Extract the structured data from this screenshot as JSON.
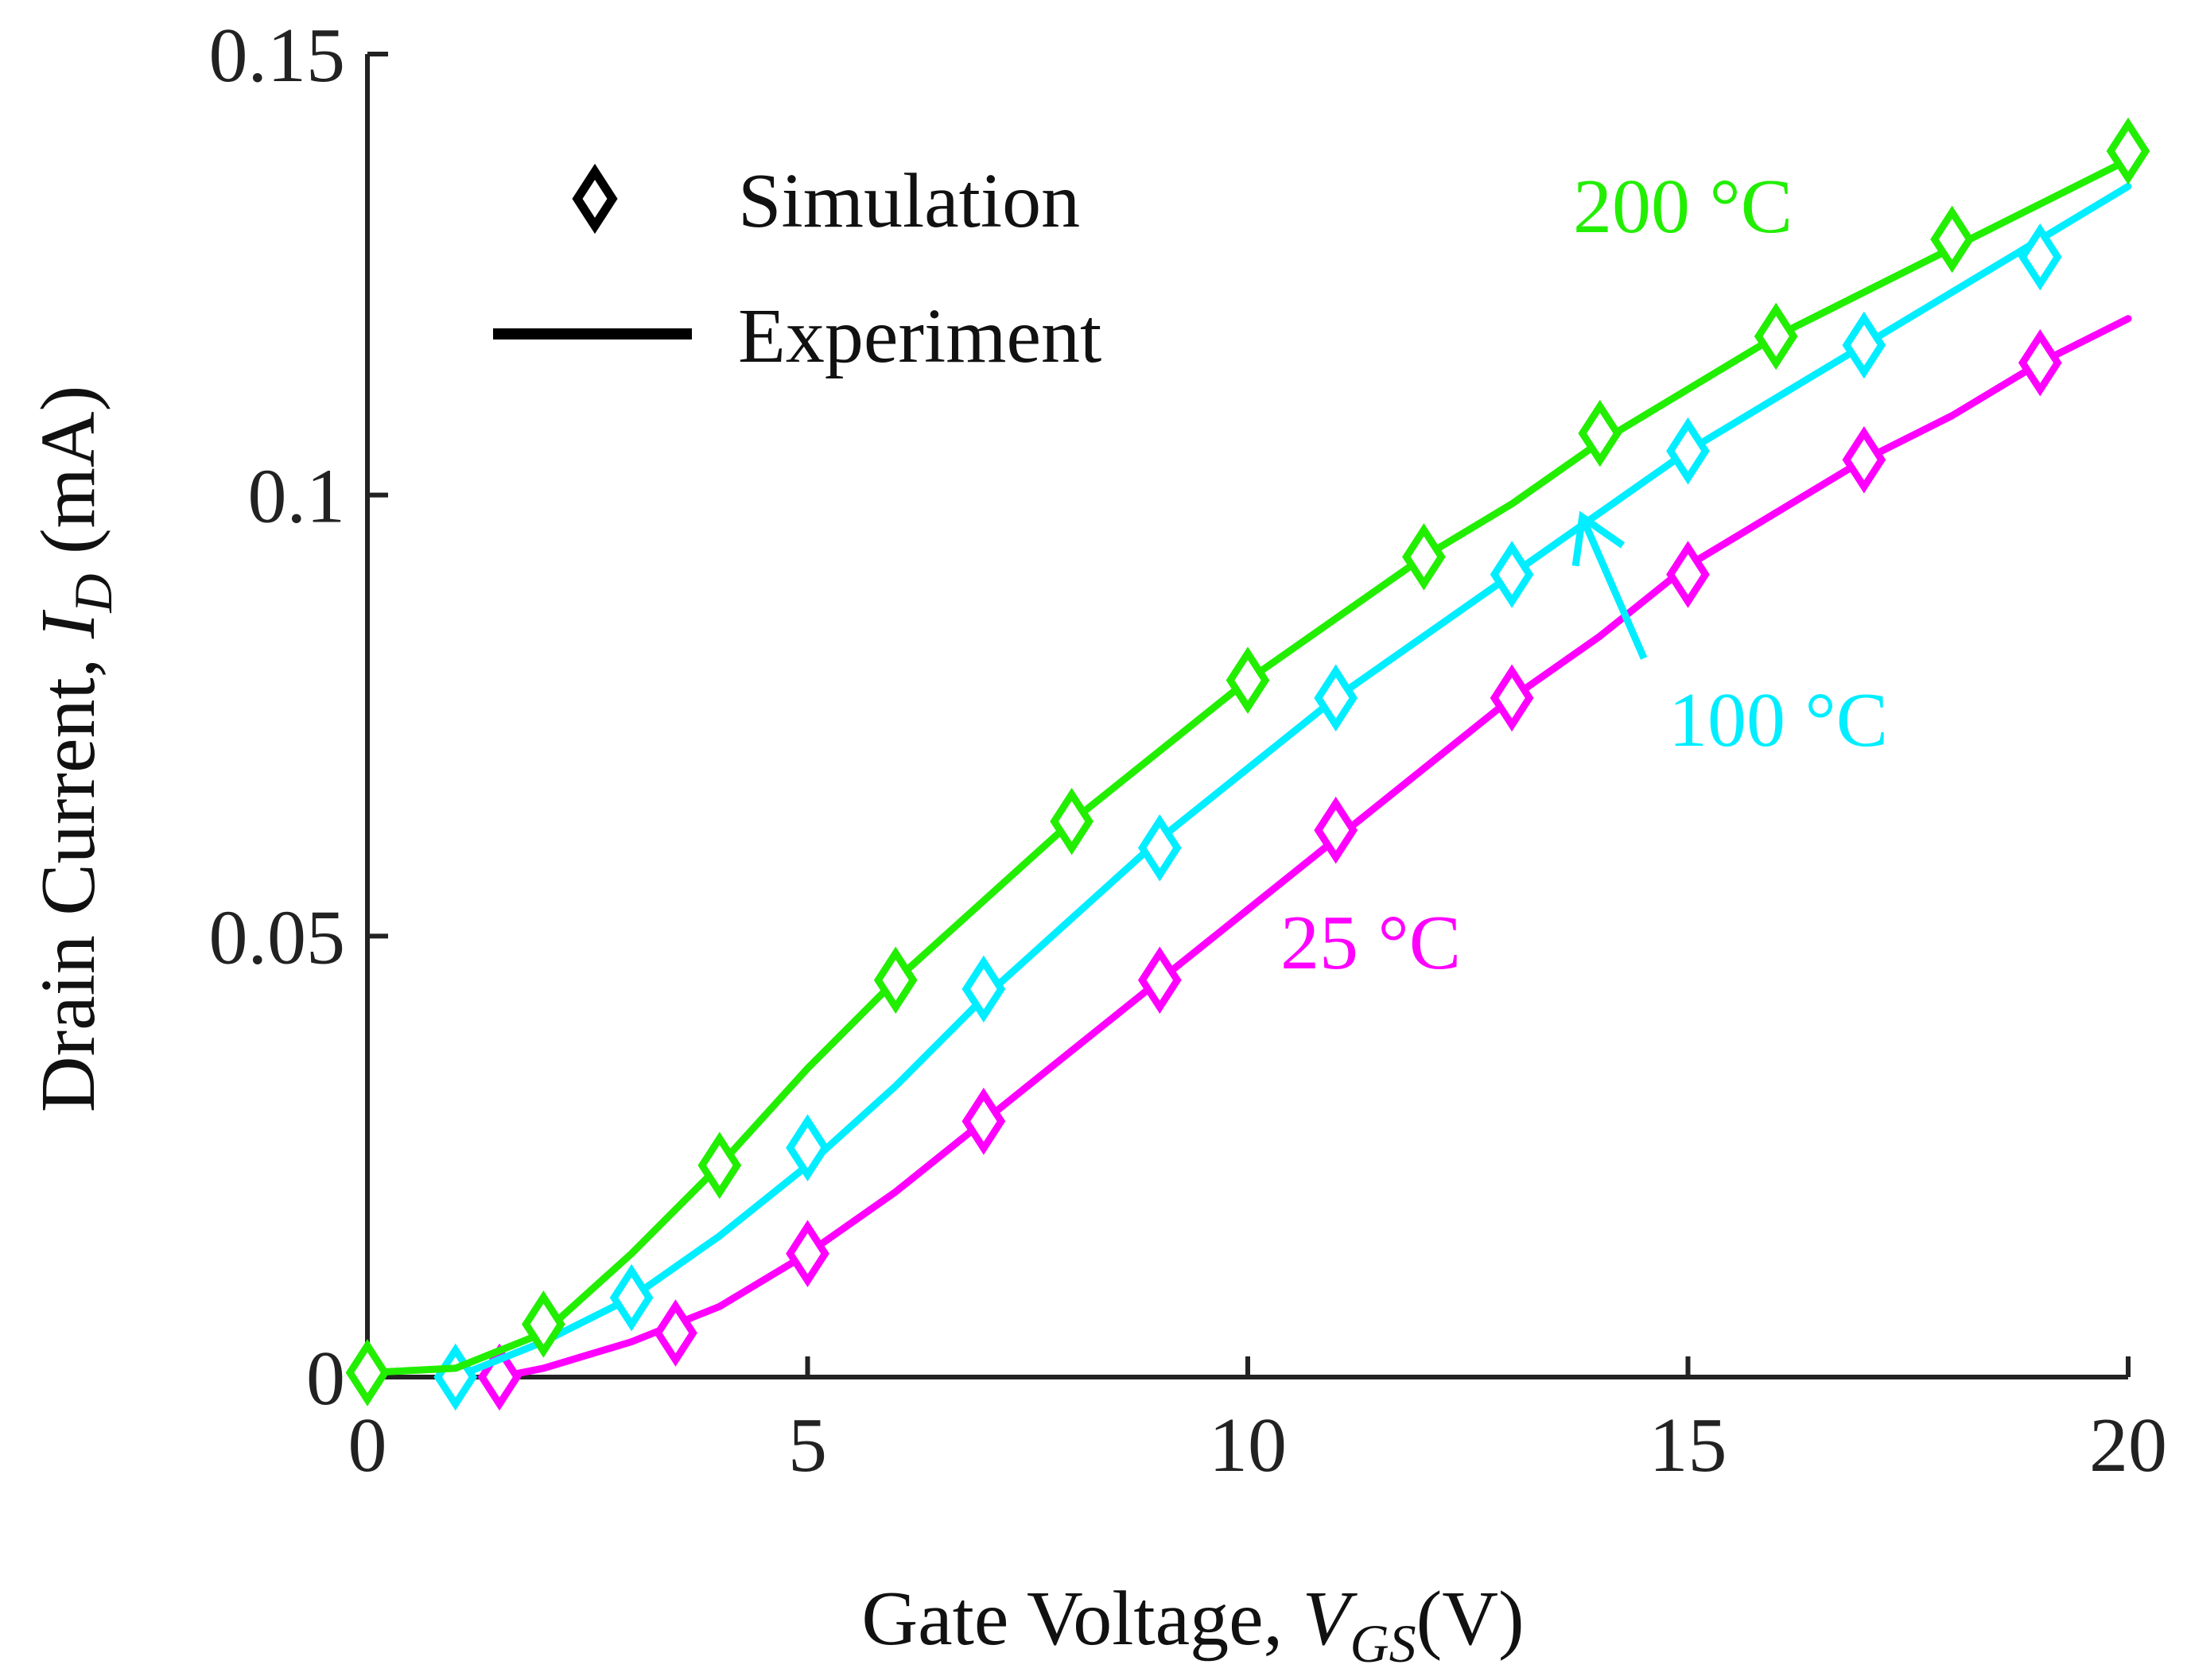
{
  "chart_data": {
    "type": "line",
    "xlabel_main": "Gate Voltage, ",
    "xlabel_var": "V",
    "xlabel_sub": "GS",
    "xlabel_unit": "(V)",
    "ylabel_main": "Drain Current, ",
    "ylabel_var": "I",
    "ylabel_sub": "D",
    "ylabel_unit": " (mA)",
    "xlim": [
      0,
      20
    ],
    "ylim": [
      0,
      0.15
    ],
    "xticks": [
      0,
      5,
      10,
      15,
      20
    ],
    "xtick_labels": [
      "0",
      "5",
      "10",
      "15",
      "20"
    ],
    "yticks": [
      0,
      0.05,
      0.1,
      0.15
    ],
    "ytick_labels": [
      "0",
      "0.05",
      "0.1",
      "0.15"
    ],
    "legend": {
      "placement": "top-left",
      "entries": [
        {
          "label": "Simulation",
          "marker": "diamond"
        },
        {
          "label": "Experiment",
          "marker": "line"
        }
      ]
    },
    "series": [
      {
        "name": "25 °C",
        "label": "25 °C",
        "color": "#ff00ff",
        "experiment": {
          "x": [
            1.5,
            2,
            3,
            4,
            5,
            6,
            7,
            8,
            9,
            10,
            11,
            12,
            13,
            14,
            15,
            16,
            17,
            18,
            19,
            20
          ],
          "y": [
            0.0,
            0.001,
            0.004,
            0.008,
            0.014,
            0.021,
            0.029,
            0.037,
            0.045,
            0.053,
            0.061,
            0.069,
            0.077,
            0.084,
            0.092,
            0.098,
            0.104,
            0.109,
            0.115,
            0.12
          ]
        },
        "simulation": {
          "x": [
            1.5,
            3.5,
            5,
            7,
            9,
            11,
            13,
            15,
            17,
            19
          ],
          "y": [
            0.0,
            0.005,
            0.014,
            0.029,
            0.045,
            0.062,
            0.077,
            0.091,
            0.104,
            0.115
          ]
        }
      },
      {
        "name": "100 °C",
        "label": "100 °C",
        "color": "#00eeff",
        "experiment": {
          "x": [
            1,
            2,
            3,
            4,
            5,
            6,
            7,
            8,
            9,
            10,
            11,
            12,
            13,
            14,
            15,
            16,
            17,
            18,
            19,
            20
          ],
          "y": [
            0.0,
            0.004,
            0.009,
            0.016,
            0.024,
            0.033,
            0.043,
            0.052,
            0.061,
            0.069,
            0.077,
            0.084,
            0.091,
            0.098,
            0.105,
            0.111,
            0.117,
            0.123,
            0.129,
            0.135
          ]
        },
        "simulation": {
          "x": [
            1,
            3,
            5,
            7,
            9,
            11,
            13,
            15,
            17,
            19
          ],
          "y": [
            0.0,
            0.009,
            0.026,
            0.044,
            0.06,
            0.077,
            0.091,
            0.105,
            0.117,
            0.127
          ]
        }
      },
      {
        "name": "200 °C",
        "label": "200 °C",
        "color": "#22ee00",
        "experiment": {
          "x": [
            0,
            1,
            2,
            3,
            4,
            5,
            6,
            7,
            8,
            9,
            10,
            11,
            12,
            13,
            14,
            15,
            16,
            17,
            18,
            19,
            20
          ],
          "y": [
            0.0005,
            0.001,
            0.005,
            0.014,
            0.024,
            0.035,
            0.045,
            0.054,
            0.063,
            0.071,
            0.079,
            0.086,
            0.093,
            0.099,
            0.106,
            0.112,
            0.118,
            0.123,
            0.128,
            0.133,
            0.138
          ]
        },
        "simulation": {
          "x": [
            0,
            2,
            4,
            6,
            8,
            10,
            12,
            14,
            16,
            18,
            20
          ],
          "y": [
            0.0005,
            0.006,
            0.024,
            0.045,
            0.063,
            0.079,
            0.093,
            0.107,
            0.118,
            0.129,
            0.139
          ]
        }
      }
    ],
    "annotations": [
      {
        "text": "100 °C",
        "arrow_to": [
          13.8,
          0.0975
        ],
        "arrow_from": [
          14.5,
          0.0815
        ]
      }
    ]
  }
}
